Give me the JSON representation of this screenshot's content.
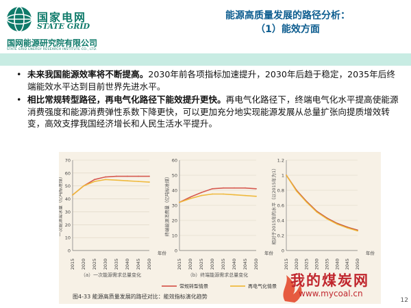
{
  "logo": {
    "cn": "国家电网",
    "en": "STATE GRID",
    "institute": "国网能源研究院有限公司",
    "institute_en": "STATE GRID ENERGY RESEARCH INSTITUTE CO., LTD."
  },
  "title": {
    "line1": "能源高质量发展的路径分析：",
    "line2": "（1）能效方面"
  },
  "bullets": [
    {
      "bold": "未来我国能源效率将不断提高。",
      "text": "2030年前各项指标加速提升，2030年后趋于稳定，2035年后终端能效水平达到目前世界先进水平。"
    },
    {
      "bold": "相比常规转型路径，再电气化路径下能效提升更快。",
      "text": "再电气化路径下，终端电气化水平提高使能源消费强度和能源消费弹性系数下降更快，可以更加充分地实现能源发展从总量扩张向提质增效转变，高效支撑我国经济增长和人民生活水平提升。"
    }
  ],
  "bullet_marker": "•",
  "figure": {
    "caption": "图4-33    能源高质量发展的路径对比：能效指标演化趋势",
    "legend": [
      "常规转型情景",
      "再电气化情景"
    ],
    "colors": {
      "conventional": "#d6594f",
      "electrification": "#efb93c",
      "single": "#c24b3b"
    }
  },
  "chart_data": [
    {
      "type": "line",
      "ylabel": "一次能源需求量（亿吨标准煤）",
      "xlabel": "年份",
      "caption": "（a）一次能源需求总量变化",
      "x": [
        2015,
        2020,
        2025,
        2030,
        2035,
        2040,
        2045,
        2050
      ],
      "ylim": [
        0,
        70
      ],
      "yticks": [
        0,
        10,
        20,
        30,
        40,
        50,
        60,
        70
      ],
      "series": [
        {
          "name": "常规转型情景",
          "values": [
            43,
            50,
            55,
            57,
            57.5,
            57.5,
            57.5,
            57.5
          ]
        },
        {
          "name": "再电气化情景",
          "values": [
            43,
            50,
            53.5,
            55,
            54.5,
            54,
            53.5,
            53
          ]
        }
      ]
    },
    {
      "type": "line",
      "ylabel": "终端能源消费量（亿吨标准煤）",
      "xlabel": "年份",
      "caption": "（b）终端能源需求总量变化",
      "x": [
        2015,
        2020,
        2025,
        2030,
        2035,
        2040,
        2045,
        2050
      ],
      "ylim": [
        0,
        60
      ],
      "yticks": [
        0,
        10,
        20,
        30,
        40,
        50,
        60
      ],
      "series": [
        {
          "name": "常规转型情景",
          "values": [
            32,
            35.5,
            38.5,
            41,
            41.5,
            41.5,
            41.5,
            41
          ]
        },
        {
          "name": "再电气化情景",
          "values": [
            32,
            34.5,
            36.5,
            37.5,
            37.5,
            37,
            36.5,
            36
          ]
        }
      ]
    },
    {
      "type": "line",
      "ylabel": "相对于2015年的水平（以2015年为1）",
      "xlabel": "年份",
      "x": [
        2015,
        2020,
        2025,
        2030,
        2035,
        2040,
        2045,
        2050
      ],
      "ylim": [
        0,
        1.2
      ],
      "yticks": [
        0,
        0.2,
        0.4,
        0.6,
        0.8,
        1.0,
        1.2
      ],
      "series": [
        {
          "name": "常规转型情景",
          "values": [
            1.0,
            0.8,
            0.65,
            0.52,
            0.43,
            0.36,
            0.31,
            0.27
          ]
        },
        {
          "name": "再电气化情景",
          "values": [
            1.0,
            0.79,
            0.64,
            0.51,
            0.42,
            0.35,
            0.3,
            0.26
          ]
        }
      ]
    }
  ],
  "watermark": {
    "cn": "我的煤炭网",
    "url": "www.mycoal.cn"
  },
  "page_number": "12"
}
